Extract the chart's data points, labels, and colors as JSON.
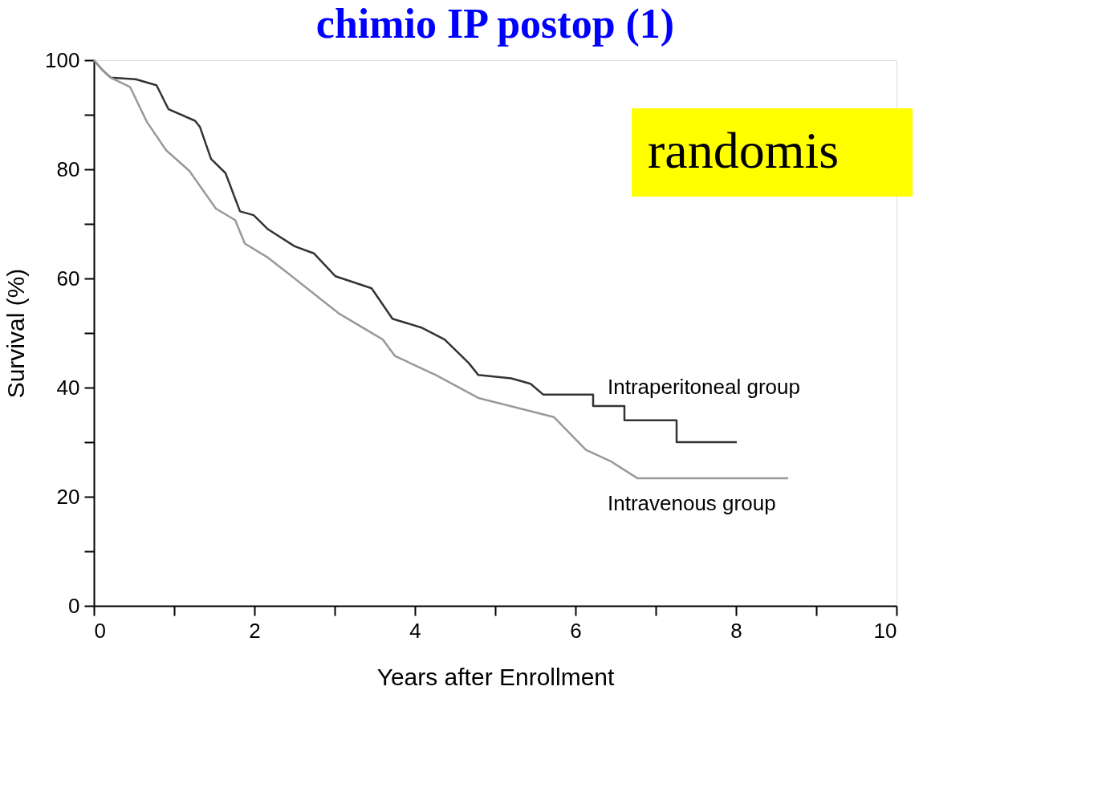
{
  "chart_data": {
    "type": "line",
    "title": "chimio IP postop (1)",
    "xlabel": "Years after Enrollment",
    "ylabel": "Survival (%)",
    "xlim": [
      0,
      10
    ],
    "xticks": [
      0,
      {
        "value": 1,
        "label": null
      },
      2,
      {
        "value": 3,
        "label": null
      },
      4,
      {
        "value": 5,
        "label": null
      },
      6,
      {
        "value": 7,
        "label": null
      },
      8,
      {
        "value": 9,
        "label": null
      },
      10
    ],
    "ylim": [
      0,
      100
    ],
    "yticks": [
      0,
      {
        "value": 10,
        "label": null
      },
      20,
      {
        "value": 30,
        "label": null
      },
      40,
      {
        "value": 50,
        "label": null
      },
      60,
      {
        "value": 70,
        "label": null
      },
      80,
      {
        "value": 90,
        "label": null
      },
      100
    ],
    "grid": false,
    "series": [
      {
        "name": "Intraperitoneal group",
        "color": "#333333",
        "x": [
          0,
          0.1,
          0.21,
          0.52,
          0.78,
          0.93,
          1.26,
          1.32,
          1.46,
          1.64,
          1.82,
          1.99,
          2.17,
          2.5,
          2.74,
          3.01,
          3.46,
          3.72,
          4.08,
          4.37,
          4.67,
          4.79,
          5.2,
          5.44,
          5.6,
          6.22,
          6.22,
          6.61,
          6.61,
          7.26,
          7.26,
          8.01
        ],
        "values": [
          100,
          98.3,
          96.8,
          96.5,
          95.4,
          91,
          88.9,
          87.8,
          81.9,
          79.3,
          72.3,
          71.6,
          69,
          65.9,
          64.6,
          60.4,
          58.2,
          52.6,
          51,
          48.8,
          44.5,
          42.3,
          41.7,
          40.7,
          38.7,
          38.7,
          36.6,
          36.6,
          34,
          34,
          30,
          30
        ]
      },
      {
        "name": "Intravenous group",
        "color": "#999999",
        "x": [
          0,
          0.1,
          0.21,
          0.45,
          0.66,
          0.9,
          1.19,
          1.52,
          1.76,
          1.88,
          2.17,
          2.44,
          3.06,
          3.6,
          3.75,
          4.26,
          4.79,
          5.73,
          6.13,
          6.44,
          6.77,
          8.65
        ],
        "values": [
          100,
          98.3,
          96.8,
          95.1,
          88.7,
          83.5,
          79.7,
          72.8,
          70.7,
          66.4,
          63.8,
          60.7,
          53.5,
          48.8,
          45.8,
          42.3,
          38.1,
          34.6,
          28.6,
          26.5,
          23.4,
          23.4
        ]
      }
    ],
    "annotations": [
      "randomis"
    ]
  }
}
